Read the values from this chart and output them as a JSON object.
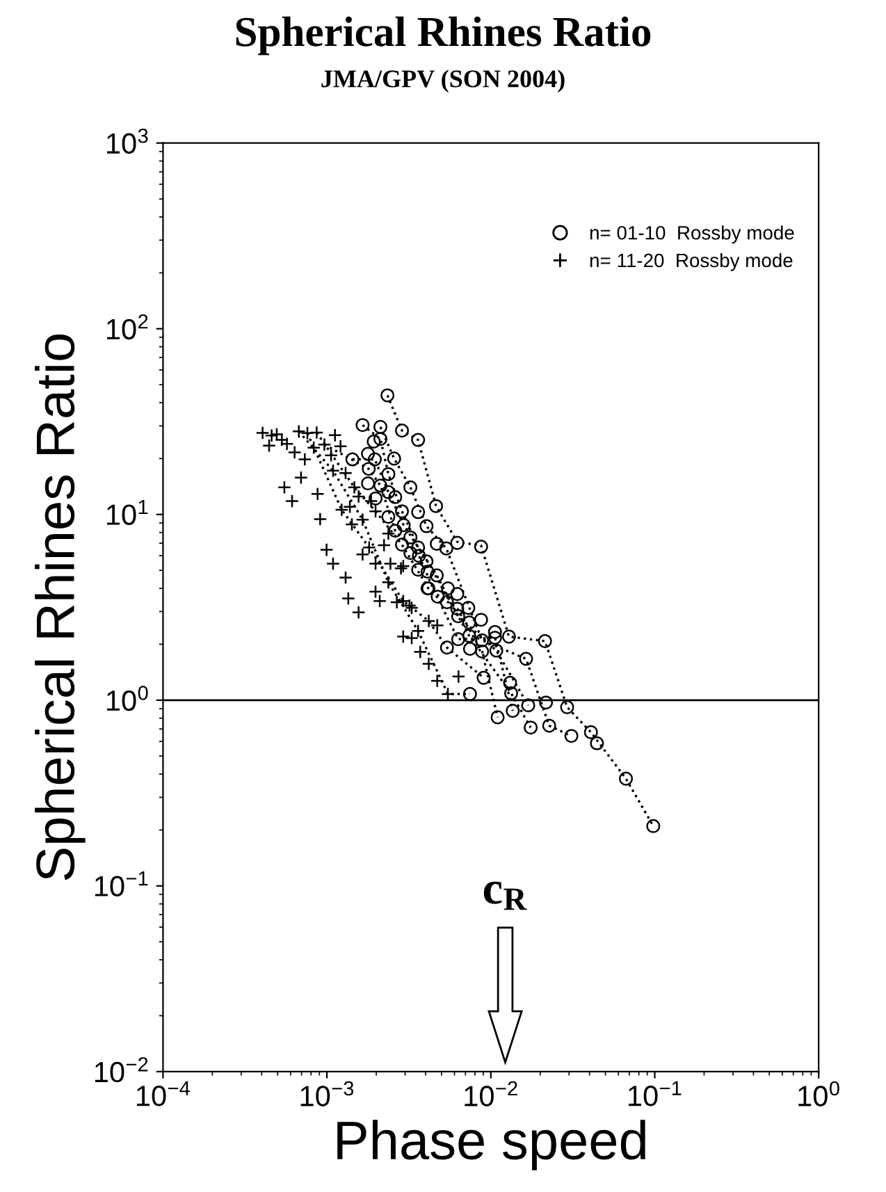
{
  "chart_data": {
    "type": "scatter",
    "title": "Spherical Rhines Ratio",
    "subtitle": "JMA/GPV (SON 2004)",
    "xlabel": "Phase speed",
    "ylabel": "Spherical Rhines Ratio",
    "log": "xy",
    "legend": "top right",
    "xlim": [
      0.0001,
      1
    ],
    "ylim": [
      0.01,
      1000
    ],
    "xticks": [
      {
        "value": 0.0001,
        "label": "10$^{−4}$"
      },
      {
        "value": 0.001,
        "label": "10$^{−3}$"
      },
      {
        "value": 0.01,
        "label": "10$^{−2}$"
      },
      {
        "value": 0.1,
        "label": "10$^{−1}$"
      },
      {
        "value": 1,
        "label": "10$^{0}$"
      }
    ],
    "yticks": [
      {
        "value": 0.01,
        "label": "10$^{−2}$"
      },
      {
        "value": 0.1,
        "label": "10$^{−1}$"
      },
      {
        "value": 1,
        "label": "10$^{0}$"
      },
      {
        "value": 10,
        "label": "10$^{1}$"
      },
      {
        "value": 100,
        "label": "10$^{2}$"
      },
      {
        "value": 1000,
        "label": "10$^{3}$"
      }
    ],
    "ref_lines": [
      {
        "axis": "y",
        "value": 1,
        "color": "#000000",
        "line_style": "solid"
      }
    ],
    "annotations": [
      "c$_{R}$"
    ],
    "series": [
      {
        "type": "line",
        "color": "#000000",
        "line_style": "dotted",
        "marker": "none",
        "x": [
          0.00234,
          0.00287,
          0.0036,
          0.00463,
          0.00624,
          0.00872,
          0.0129,
          0.0214,
          0.0292,
          0.0408,
          0.0667,
          0.0979
        ],
        "values": [
          43.8,
          28.3,
          25.2,
          11.1,
          7.12,
          6.79,
          2.2,
          2.08,
          0.917,
          0.672,
          0.378,
          0.21
        ]
      },
      {
        "type": "line",
        "color": "#000000",
        "line_style": "dotted",
        "marker": "none",
        "x": [
          0.00212,
          0.00257,
          0.00323,
          0.00405,
          0.00535,
          0.00884,
          0.0164,
          0.0227,
          0.031
        ],
        "values": [
          29.6,
          20.0,
          14.0,
          8.65,
          6.56,
          2.1,
          1.67,
          0.729,
          0.642
        ]
      },
      {
        "type": "line",
        "color": "#000000",
        "line_style": "dotted",
        "marker": "none",
        "x": [
          0.00165,
          0.00212,
          0.00237,
          0.00287,
          0.0036,
          0.00468,
          0.00632,
          0.0108,
          0.0169
        ],
        "values": [
          30.3,
          25.5,
          16.5,
          10.4,
          6.64,
          4.7,
          2.83,
          1.85,
          0.938
        ]
      },
      {
        "type": "line",
        "color": "#000000",
        "line_style": "dotted",
        "marker": "none",
        "x": [
          0.00143,
          0.00196,
          0.00237,
          0.00294,
          0.00411,
          0.0054,
          0.00738,
          0.0133,
          0.0175
        ],
        "values": [
          19.8,
          19.8,
          13.2,
          8.76,
          5.59,
          3.61,
          2.22,
          1.09,
          0.712
        ]
      },
      {
        "type": "line",
        "color": "#000000",
        "line_style": "dotted",
        "marker": "none",
        "x": [
          0.000965,
          0.0018,
          0.00212,
          0.00261,
          0.00364,
          0.00468,
          0.00632,
          0.0106,
          0.0136
        ],
        "values": [
          23.8,
          17.6,
          14.3,
          8.17,
          5.99,
          3.61,
          2.13,
          2.17,
          0.876
        ]
      },
      {
        "type": "line",
        "color": "#000000",
        "line_style": "dotted",
        "marker": "none",
        "x": [
          0.000866,
          0.00147,
          0.00198,
          0.00287,
          0.00416,
          0.00624,
          0.00884,
          0.011
        ],
        "values": [
          27.6,
          14.0,
          10.4,
          6.88,
          4.0,
          3.11,
          1.83,
          0.809
        ]
      },
      {
        "type": "line",
        "color": "#000000",
        "line_style": "dotted",
        "marker": "none",
        "x": [
          0.00076,
          0.00123,
          0.00181,
          0.00292,
          0.00418,
          0.0054,
          0.00904
        ],
        "values": [
          27.4,
          10.6,
          6.64,
          3.42,
          2.67,
          1.92,
          1.32
        ]
      },
      {
        "type": "line",
        "color": "#000000",
        "line_style": "dotted",
        "marker": "none",
        "x": [
          0.000674,
          0.00109,
          0.00165,
          0.00237,
          0.0036,
          0.00547,
          0.00746
        ],
        "values": [
          28.0,
          17.2,
          9.38,
          4.31,
          2.36,
          1.08,
          1.08
        ]
      },
      {
        "name": "n= 01-10  Rossby mode",
        "color": "#000000",
        "marker": "circle",
        "x": [
          0.00234,
          0.00165,
          0.00212,
          0.00287,
          0.0036,
          0.00212,
          0.00193,
          0.00178,
          0.00257,
          0.00196,
          0.00143,
          0.00237,
          0.0018,
          0.00323,
          0.00212,
          0.00178,
          0.00237,
          0.00261,
          0.00198,
          0.00463,
          0.00287,
          0.0036,
          0.00237,
          0.00405,
          0.00294,
          0.00261,
          0.00624,
          0.00872,
          0.00468,
          0.00535,
          0.00323,
          0.00287,
          0.00323,
          0.00405,
          0.0036,
          0.00468,
          0.00411,
          0.00547,
          0.00411,
          0.00624,
          0.00474,
          0.0054,
          0.00729,
          0.0036,
          0.00364,
          0.00416,
          0.00624,
          0.00632,
          0.00872,
          0.00738,
          0.0106,
          0.0106,
          0.0129,
          0.0214,
          0.00632,
          0.00738,
          0.00884,
          0.0054,
          0.00746,
          0.00884,
          0.0108,
          0.0164,
          0.00904,
          0.0131,
          0.0133,
          0.00746,
          0.0169,
          0.0217,
          0.0292,
          0.011,
          0.0136,
          0.0175,
          0.0227,
          0.031,
          0.0408,
          0.0444,
          0.0667,
          0.0979
        ],
        "values": [
          43.8,
          30.3,
          29.6,
          28.3,
          25.2,
          25.5,
          24.7,
          21.2,
          20.0,
          19.8,
          19.8,
          16.5,
          17.6,
          14.0,
          14.3,
          14.7,
          13.2,
          12.4,
          12.2,
          11.1,
          10.4,
          10.3,
          9.71,
          8.65,
          8.76,
          8.17,
          7.03,
          6.71,
          6.95,
          6.56,
          7.53,
          6.88,
          6.2,
          5.59,
          5.04,
          4.7,
          4.92,
          4.0,
          4.0,
          3.73,
          3.61,
          3.37,
          3.14,
          6.64,
          5.99,
          4.0,
          3.11,
          2.83,
          2.71,
          2.62,
          2.33,
          2.17,
          2.2,
          2.08,
          2.13,
          2.22,
          2.1,
          1.92,
          1.89,
          1.83,
          1.85,
          1.67,
          1.32,
          1.24,
          1.09,
          1.08,
          0.938,
          0.971,
          0.917,
          0.809,
          0.876,
          0.712,
          0.729,
          0.642,
          0.672,
          0.586,
          0.378,
          0.21
        ]
      },
      {
        "name": "n= 11-20  Rossby mode",
        "color": "#000000",
        "marker": "cross",
        "x": [
          0.000674,
          0.00076,
          0.000866,
          0.000831,
          0.000965,
          0.00112,
          0.00121,
          0.00106,
          0.00109,
          0.0013,
          0.00147,
          0.00156,
          0.00123,
          0.00138,
          0.00186,
          0.00165,
          0.00142,
          0.00198,
          0.00181,
          0.00223,
          0.00237,
          0.00165,
          0.00198,
          0.00244,
          0.00292,
          0.00237,
          0.00198,
          0.0021,
          0.00267,
          0.00319,
          0.00283,
          0.00329,
          0.00418,
          0.00471,
          0.00292,
          0.0036,
          0.00292,
          0.00329,
          0.00371,
          0.00418,
          0.00471,
          0.00547,
          0.00635,
          0.000405,
          0.00046,
          0.000531,
          0.000494,
          0.00057,
          0.000635,
          0.000733,
          0.000444,
          0.00055,
          0.000613,
          0.000909,
          0.000695,
          0.000995,
          0.00109,
          0.0013,
          0.00156,
          0.00135,
          0.000877
        ],
        "values": [
          28.0,
          27.4,
          27.6,
          22.9,
          23.8,
          26.7,
          23.3,
          20.8,
          17.2,
          16.7,
          14.0,
          12.5,
          10.6,
          11.0,
          11.8,
          9.38,
          8.85,
          10.4,
          6.64,
          6.83,
          7.89,
          6.09,
          5.43,
          5.43,
          5.27,
          4.31,
          3.84,
          3.42,
          3.37,
          3.23,
          5.13,
          3.14,
          2.67,
          2.53,
          3.42,
          2.36,
          2.2,
          2.16,
          1.82,
          1.57,
          1.27,
          1.08,
          1.34,
          27.5,
          26.6,
          25.2,
          27.0,
          24.0,
          21.6,
          19.8,
          23.5,
          14.0,
          11.8,
          9.43,
          15.8,
          6.45,
          5.43,
          4.57,
          2.97,
          3.53,
          12.9
        ]
      }
    ]
  }
}
